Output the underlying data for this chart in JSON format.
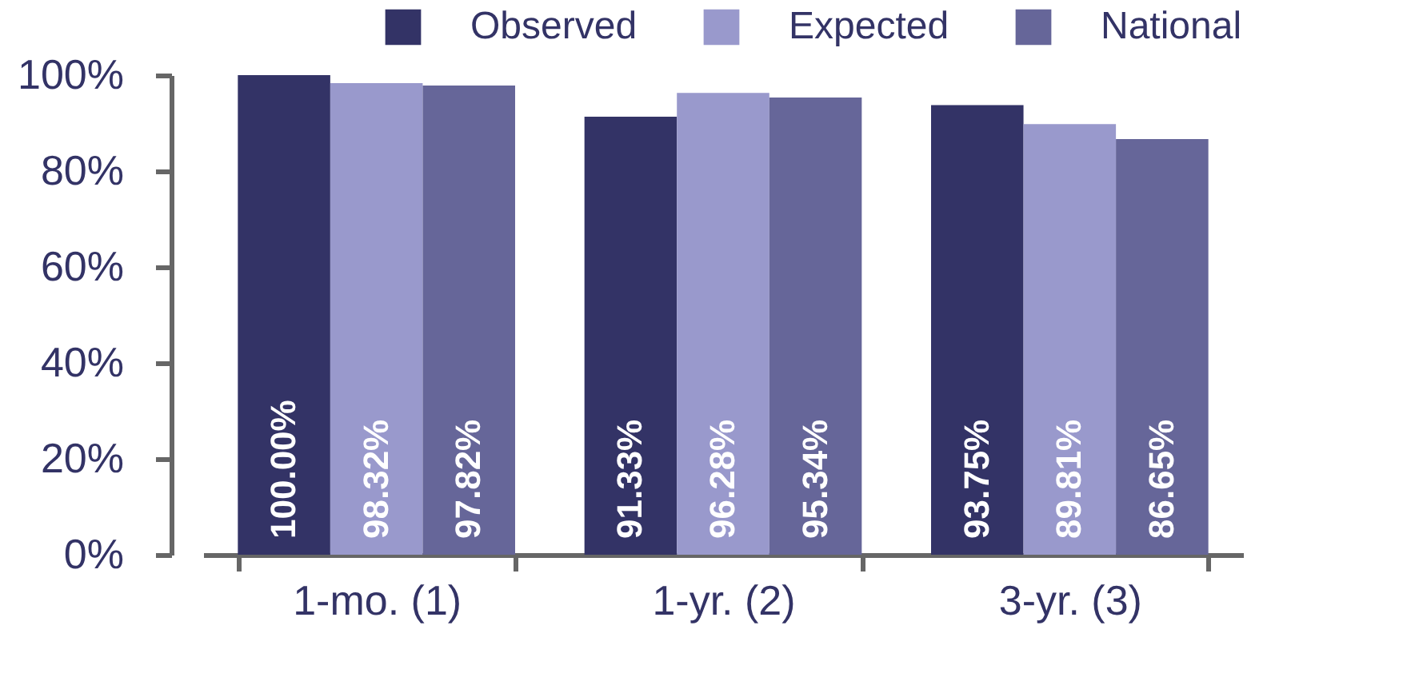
{
  "chart_data": {
    "type": "bar",
    "categories": [
      "1-mo. (1)",
      "1-yr. (2)",
      "3-yr. (3)"
    ],
    "series": [
      {
        "name": "Observed",
        "color": "#333366",
        "values": [
          100.0,
          91.33,
          93.75
        ],
        "value_labels": [
          "100.00%",
          "91.33%",
          "93.75%"
        ]
      },
      {
        "name": "Expected",
        "color": "#9999cc",
        "values": [
          98.32,
          96.28,
          89.81
        ],
        "value_labels": [
          "98.32%",
          "96.28%",
          "89.81%"
        ]
      },
      {
        "name": "National",
        "color": "#666699",
        "values": [
          97.82,
          95.34,
          86.65
        ],
        "value_labels": [
          "97.82%",
          "95.34%",
          "86.65%"
        ]
      }
    ],
    "ylim": [
      0,
      100
    ],
    "yticks": [
      {
        "value": 0,
        "label": "0%"
      },
      {
        "value": 20,
        "label": "20%"
      },
      {
        "value": 40,
        "label": "40%"
      },
      {
        "value": 60,
        "label": "60%"
      },
      {
        "value": 80,
        "label": "80%"
      },
      {
        "value": 100,
        "label": "100%"
      }
    ],
    "grid": false,
    "legend": "top right"
  }
}
